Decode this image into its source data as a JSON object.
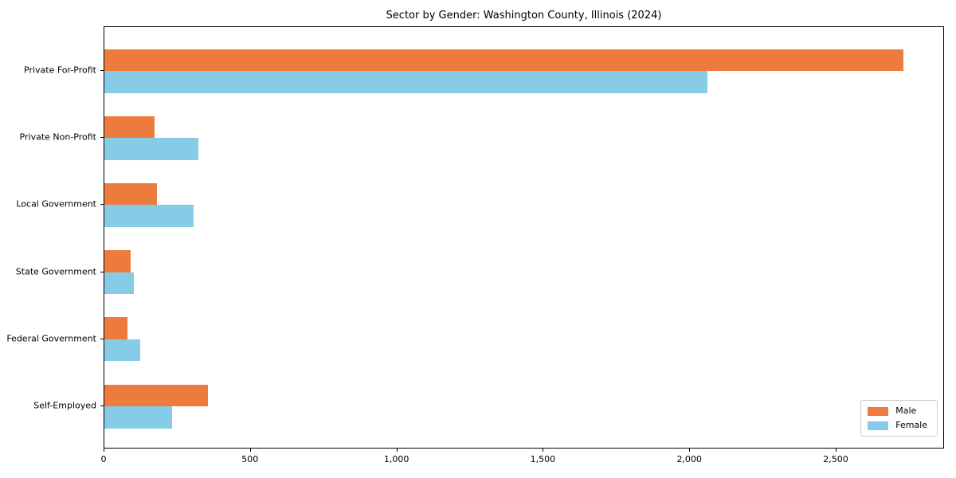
{
  "title": "Sector by Gender: Washington County, Illinois (2024)",
  "colors": {
    "male_bar": "#EC7B3D",
    "female_bar": "#87CCE7",
    "axis": "#000000",
    "legend_border": "#CCCCCC",
    "background": "#FFFFFF"
  },
  "chart_data": {
    "type": "bar",
    "orientation": "horizontal",
    "title": "Sector by Gender: Washington County, Illinois (2024)",
    "categories": [
      "Private For-Profit",
      "Private Non-Profit",
      "Local Government",
      "State Government",
      "Federal Government",
      "Self-Employed"
    ],
    "series": [
      {
        "name": "Male",
        "color": "#EC7B3D",
        "values": [
          2733,
          171,
          179,
          90,
          79,
          353
        ]
      },
      {
        "name": "Female",
        "color": "#87CCE7",
        "values": [
          2062,
          321,
          304,
          100,
          122,
          233
        ]
      }
    ],
    "xlabel": "",
    "ylabel": "",
    "xlim": [
      0,
      2870
    ],
    "x_ticks": [
      0,
      500,
      1000,
      1500,
      2000,
      2500
    ],
    "x_tick_labels": [
      "0",
      "500",
      "1,000",
      "1,500",
      "2,000",
      "2,500"
    ],
    "grid": false,
    "legend": {
      "position": "lower right",
      "entries": [
        "Male",
        "Female"
      ]
    }
  }
}
